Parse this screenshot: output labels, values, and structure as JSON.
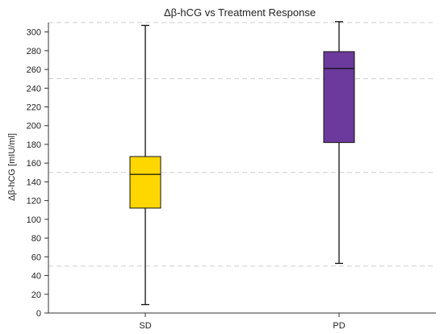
{
  "chart_data": {
    "type": "box",
    "title": "Δβ-hCG vs Treatment Response",
    "ylabel": "Δβ-hCG [mIU/ml]",
    "xlabel": "",
    "ylim": [
      0,
      310
    ],
    "yticks": [
      0,
      20,
      40,
      60,
      80,
      100,
      120,
      140,
      160,
      180,
      200,
      220,
      240,
      260,
      280,
      300
    ],
    "gridlines": [
      50,
      150,
      250,
      310
    ],
    "grid": true,
    "categories": [
      "SD",
      "PD"
    ],
    "series": [
      {
        "category": "SD",
        "min": 9,
        "q1": 112,
        "median": 148,
        "q3": 167,
        "max": 307,
        "color": "#FFD700"
      },
      {
        "category": "PD",
        "min": 53,
        "q1": 182,
        "median": 261,
        "q3": 279,
        "max": 311,
        "color": "#6B3A9C"
      }
    ]
  }
}
